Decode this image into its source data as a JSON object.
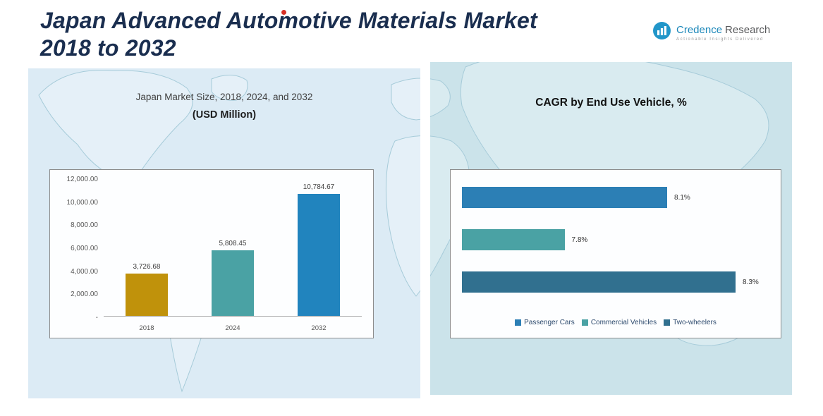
{
  "page": {
    "title_line1": "Japan Advanced Automotive Materials Market",
    "title_line2": "2018 to 2032"
  },
  "logo": {
    "brand_word1": "Credence",
    "brand_word2": "Research",
    "tagline": "Actionable Insights Delivered"
  },
  "left_panel": {
    "title": "Japan Market Size, 2018, 2024, and 2032",
    "subtitle": "(USD Million)"
  },
  "right_panel": {
    "title": "CAGR by End Use Vehicle, %"
  },
  "chart_data": [
    {
      "type": "bar",
      "orientation": "vertical",
      "title": "Japan Market Size, 2018, 2024, and 2032",
      "subtitle": "(USD Million)",
      "categories": [
        "2018",
        "2024",
        "2032"
      ],
      "values": [
        3726.68,
        5808.45,
        10784.67
      ],
      "value_labels": [
        "3,726.68",
        "5,808.45",
        "10,784.67"
      ],
      "ylim": [
        0,
        12000
      ],
      "ytick_labels": [
        "12,000.00",
        "10,000.00",
        "8,000.00",
        "6,000.00",
        "4,000.00",
        "2,000.00",
        "-"
      ],
      "bar_colors": [
        "#C0920B",
        "#4AA2A4",
        "#2184BE"
      ],
      "grid": false,
      "legend": "none"
    },
    {
      "type": "bar",
      "orientation": "horizontal",
      "title": "CAGR by End Use Vehicle, %",
      "categories": [
        "Passenger Cars",
        "Commercial Vehicles",
        "Two-wheelers"
      ],
      "values": [
        8.1,
        7.8,
        8.3
      ],
      "value_labels": [
        "8.1%",
        "7.8%",
        "8.3%"
      ],
      "xlim": [
        7.5,
        8.3
      ],
      "bar_colors": [
        "#2C7FB5",
        "#4AA2A4",
        "#31708F"
      ],
      "grid": false,
      "legend_position": "bottom"
    }
  ],
  "colors": {
    "title_navy": "#1A2E4F",
    "accent_red": "#D93025",
    "left_panel_bg": "#DCEBF5",
    "right_panel_bg": "#CBE3EA",
    "brand_teal": "#2196C9"
  }
}
